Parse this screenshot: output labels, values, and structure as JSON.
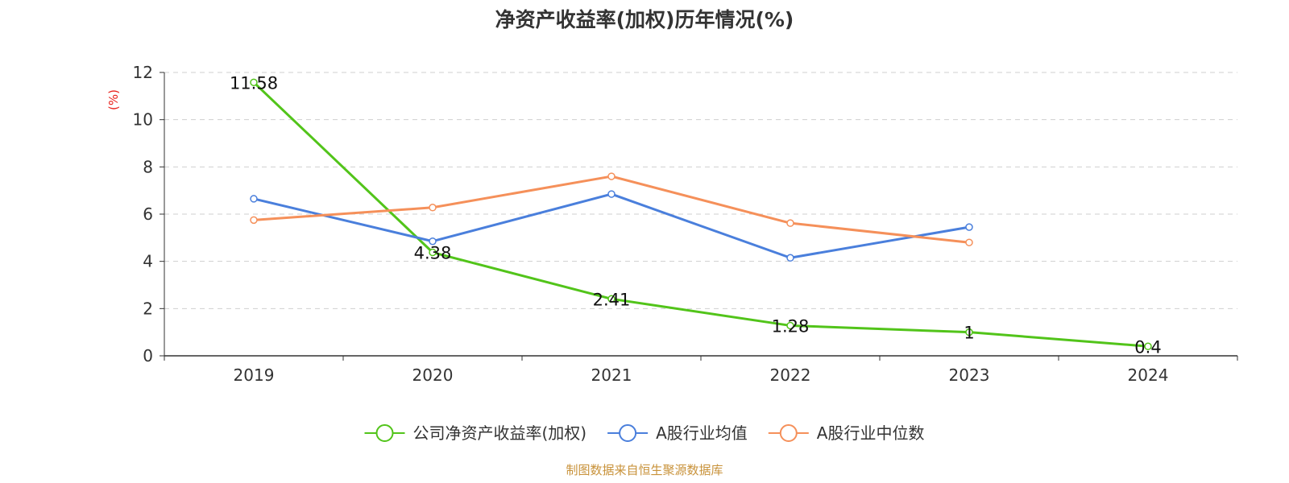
{
  "chart_data": {
    "type": "line",
    "title": "净资产收益率(加权)历年情况(%)",
    "ylabel": "(%)",
    "ylim": [
      0,
      12
    ],
    "yticks": [
      0,
      2,
      4,
      6,
      8,
      10,
      12
    ],
    "categories": [
      "2019",
      "2020",
      "2021",
      "2022",
      "2023",
      "2024"
    ],
    "grid": true,
    "legend_position": "bottom",
    "series": [
      {
        "name": "公司净资产收益率(加权)",
        "color": "#52c41a",
        "values": [
          11.58,
          4.38,
          2.41,
          1.28,
          1,
          0.4
        ],
        "labels": [
          "11.58",
          "4.38",
          "2.41",
          "1.28",
          "1",
          "0.4"
        ]
      },
      {
        "name": "A股行业均值",
        "color": "#4a7fdc",
        "values": [
          6.65,
          4.85,
          6.85,
          4.15,
          5.45,
          null
        ]
      },
      {
        "name": "A股行业中位数",
        "color": "#f5905a",
        "values": [
          5.75,
          6.28,
          7.6,
          5.62,
          4.8,
          null
        ]
      }
    ],
    "source": "制图数据来自恒生聚源数据库"
  }
}
